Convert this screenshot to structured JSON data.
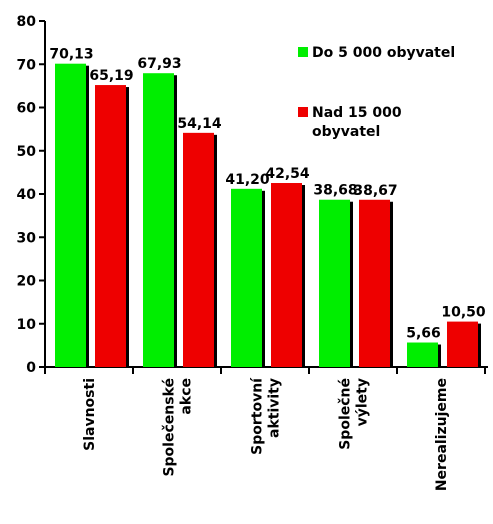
{
  "chart_data": {
    "type": "bar",
    "categories": [
      [
        "Slavnosti"
      ],
      [
        "Společenské",
        "akce"
      ],
      [
        "Sportovní",
        "aktivity"
      ],
      [
        "Společné",
        "výlety"
      ],
      [
        "Nerealizujeme"
      ]
    ],
    "series": [
      {
        "name": "Do 5 000 obyvatel",
        "color": "#00ee00",
        "values": [
          70.13,
          67.93,
          41.2,
          38.68,
          5.66
        ],
        "labels": [
          "70,13",
          "67,93",
          "41,20",
          "38,68",
          "5,66"
        ]
      },
      {
        "name": "Nad 15 000 obyvatel",
        "name_lines": [
          "Nad 15 000",
          "obyvatel"
        ],
        "color": "#ee0000",
        "values": [
          65.19,
          54.14,
          42.54,
          38.67,
          10.5
        ],
        "labels": [
          "65,19",
          "54,14",
          "42,54",
          "38,67",
          "10,50"
        ]
      }
    ],
    "ylim": [
      0,
      80
    ],
    "yticks": [
      0,
      10,
      20,
      30,
      40,
      50,
      60,
      70,
      80
    ],
    "grid": false,
    "legend_position": "top-right",
    "title": "",
    "xlabel": "",
    "ylabel": ""
  }
}
